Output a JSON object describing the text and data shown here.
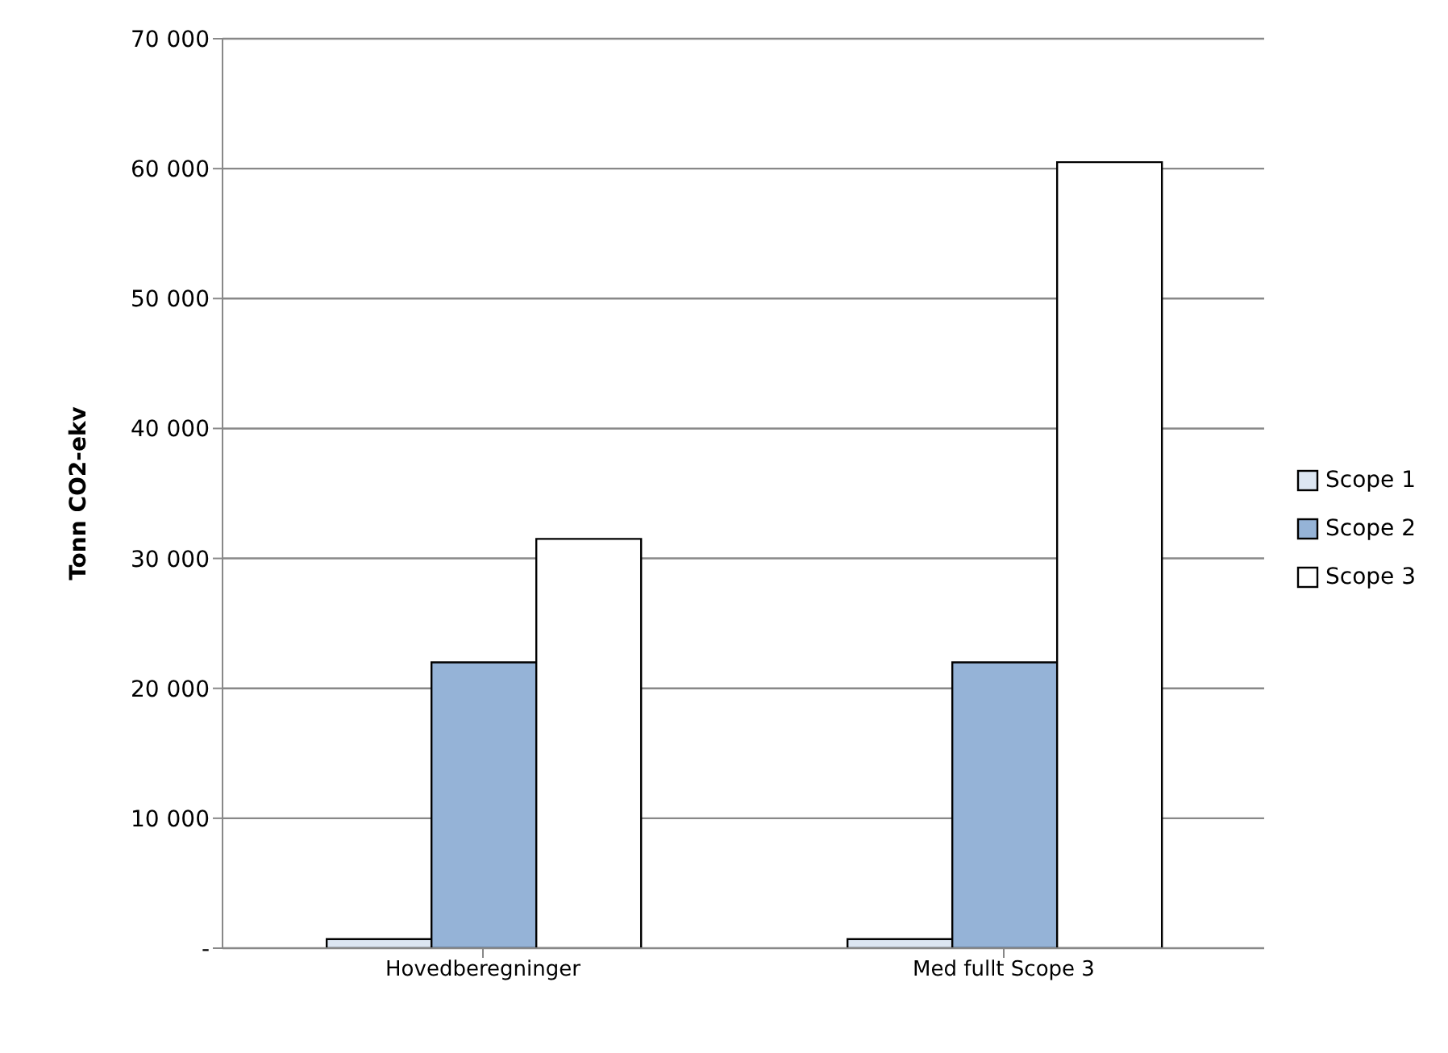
{
  "chart_data": {
    "type": "bar",
    "ylabel": "Tonn CO2-ekv",
    "categories": [
      "Hovedberegninger",
      "Med fullt Scope 3"
    ],
    "series": [
      {
        "name": "Scope 1",
        "color": "#dce6f2",
        "values": [
          700,
          700
        ]
      },
      {
        "name": "Scope 2",
        "color": "#95b3d7",
        "values": [
          22000,
          22000
        ]
      },
      {
        "name": "Scope 3",
        "color": "#ffffff",
        "values": [
          31500,
          60500
        ]
      }
    ],
    "ylim": [
      0,
      70000
    ],
    "yticks": [
      {
        "value": 0,
        "label": "-"
      },
      {
        "value": 10000,
        "label": "10 000"
      },
      {
        "value": 20000,
        "label": "20 000"
      },
      {
        "value": 30000,
        "label": "30 000"
      },
      {
        "value": 40000,
        "label": "40 000"
      },
      {
        "value": 50000,
        "label": "50 000"
      },
      {
        "value": 60000,
        "label": "60 000"
      },
      {
        "value": 70000,
        "label": "70 000"
      }
    ],
    "grid": "y",
    "legend": "right"
  }
}
